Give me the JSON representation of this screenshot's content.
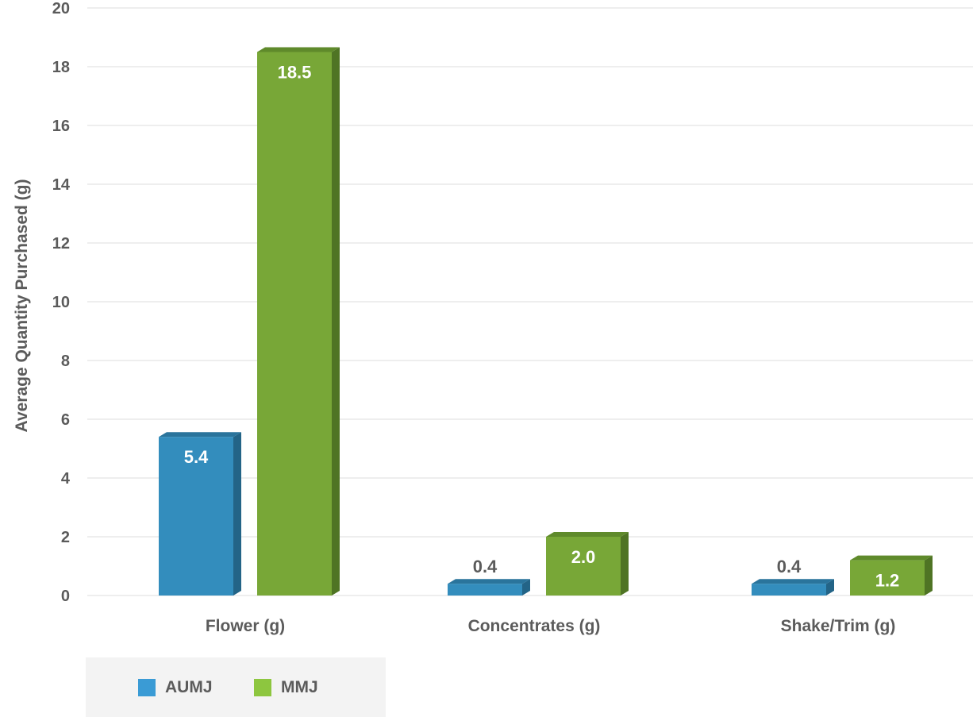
{
  "chart_data": {
    "type": "bar",
    "categories": [
      "Flower (g)",
      "Concentrates (g)",
      "Shake/Trim (g)"
    ],
    "series": [
      {
        "name": "AUMJ",
        "values": [
          5.4,
          0.4,
          0.4
        ],
        "labels": [
          "5.4",
          "0.4",
          "0.4"
        ],
        "color": "#338dbd",
        "top_color": "#2a749c",
        "side_color": "#236487"
      },
      {
        "name": "MMJ",
        "values": [
          18.5,
          2.0,
          1.2
        ],
        "labels": [
          "18.5",
          "2.0",
          "1.2"
        ],
        "color": "#78a737",
        "top_color": "#5f8a2b",
        "side_color": "#4f7424"
      }
    ],
    "title": "",
    "xlabel": "",
    "ylabel": "Average Quantity Purchased (g)",
    "ylim": [
      0,
      20
    ],
    "yticks": [
      "0",
      "2",
      "4",
      "6",
      "8",
      "10",
      "12",
      "14",
      "16",
      "18",
      "20"
    ],
    "grid": true,
    "legend_position": "bottom-left"
  },
  "legend": {
    "items": [
      {
        "label": "AUMJ",
        "color": "#3a9bd5"
      },
      {
        "label": "MMJ",
        "color": "#8dc63f"
      }
    ]
  }
}
